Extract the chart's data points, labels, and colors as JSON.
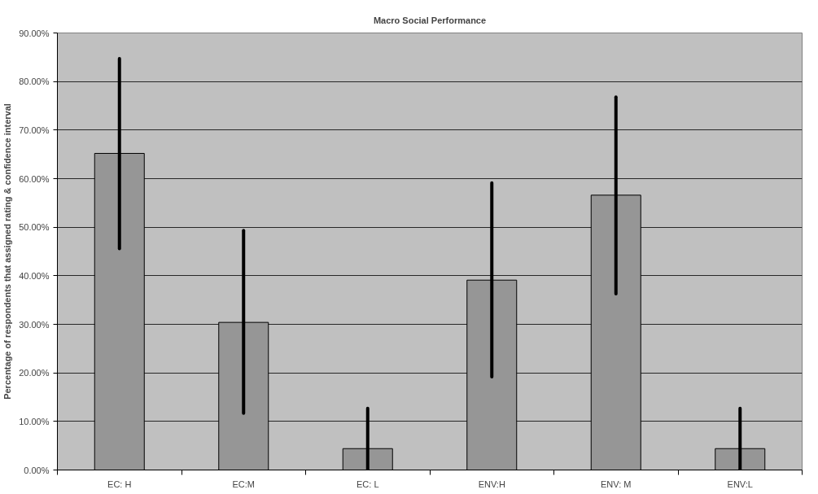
{
  "chart_data": {
    "type": "bar",
    "title": "Macro Social Performance",
    "ylabel": "Percentage of respondents that assigned rating & confidence interval",
    "categories": [
      "EC: H",
      "EC:M",
      "EC: L",
      "ENV:H",
      "ENV: M",
      "ENV:L"
    ],
    "values": [
      65.2,
      30.4,
      4.4,
      39.1,
      56.6,
      4.4
    ],
    "errors": [
      [
        45.6,
        84.7
      ],
      [
        11.7,
        49.3
      ],
      [
        0,
        12.7
      ],
      [
        19.2,
        59.1
      ],
      [
        36.3,
        76.8
      ],
      [
        0,
        12.7
      ]
    ],
    "color": "#969696",
    "ylim": [
      0,
      90
    ],
    "yticks": [
      {
        "value": 0,
        "label": "0.00%"
      },
      {
        "value": 10,
        "label": "10.00%"
      },
      {
        "value": 20,
        "label": "20.00%"
      },
      {
        "value": 30,
        "label": "30.00%"
      },
      {
        "value": 40,
        "label": "40.00%"
      },
      {
        "value": 50,
        "label": "50.00%"
      },
      {
        "value": 60,
        "label": "60.00%"
      },
      {
        "value": 70,
        "label": "70.00%"
      },
      {
        "value": 80,
        "label": "80.00%"
      },
      {
        "value": 90,
        "label": "90.00%"
      }
    ],
    "grid": "y"
  }
}
